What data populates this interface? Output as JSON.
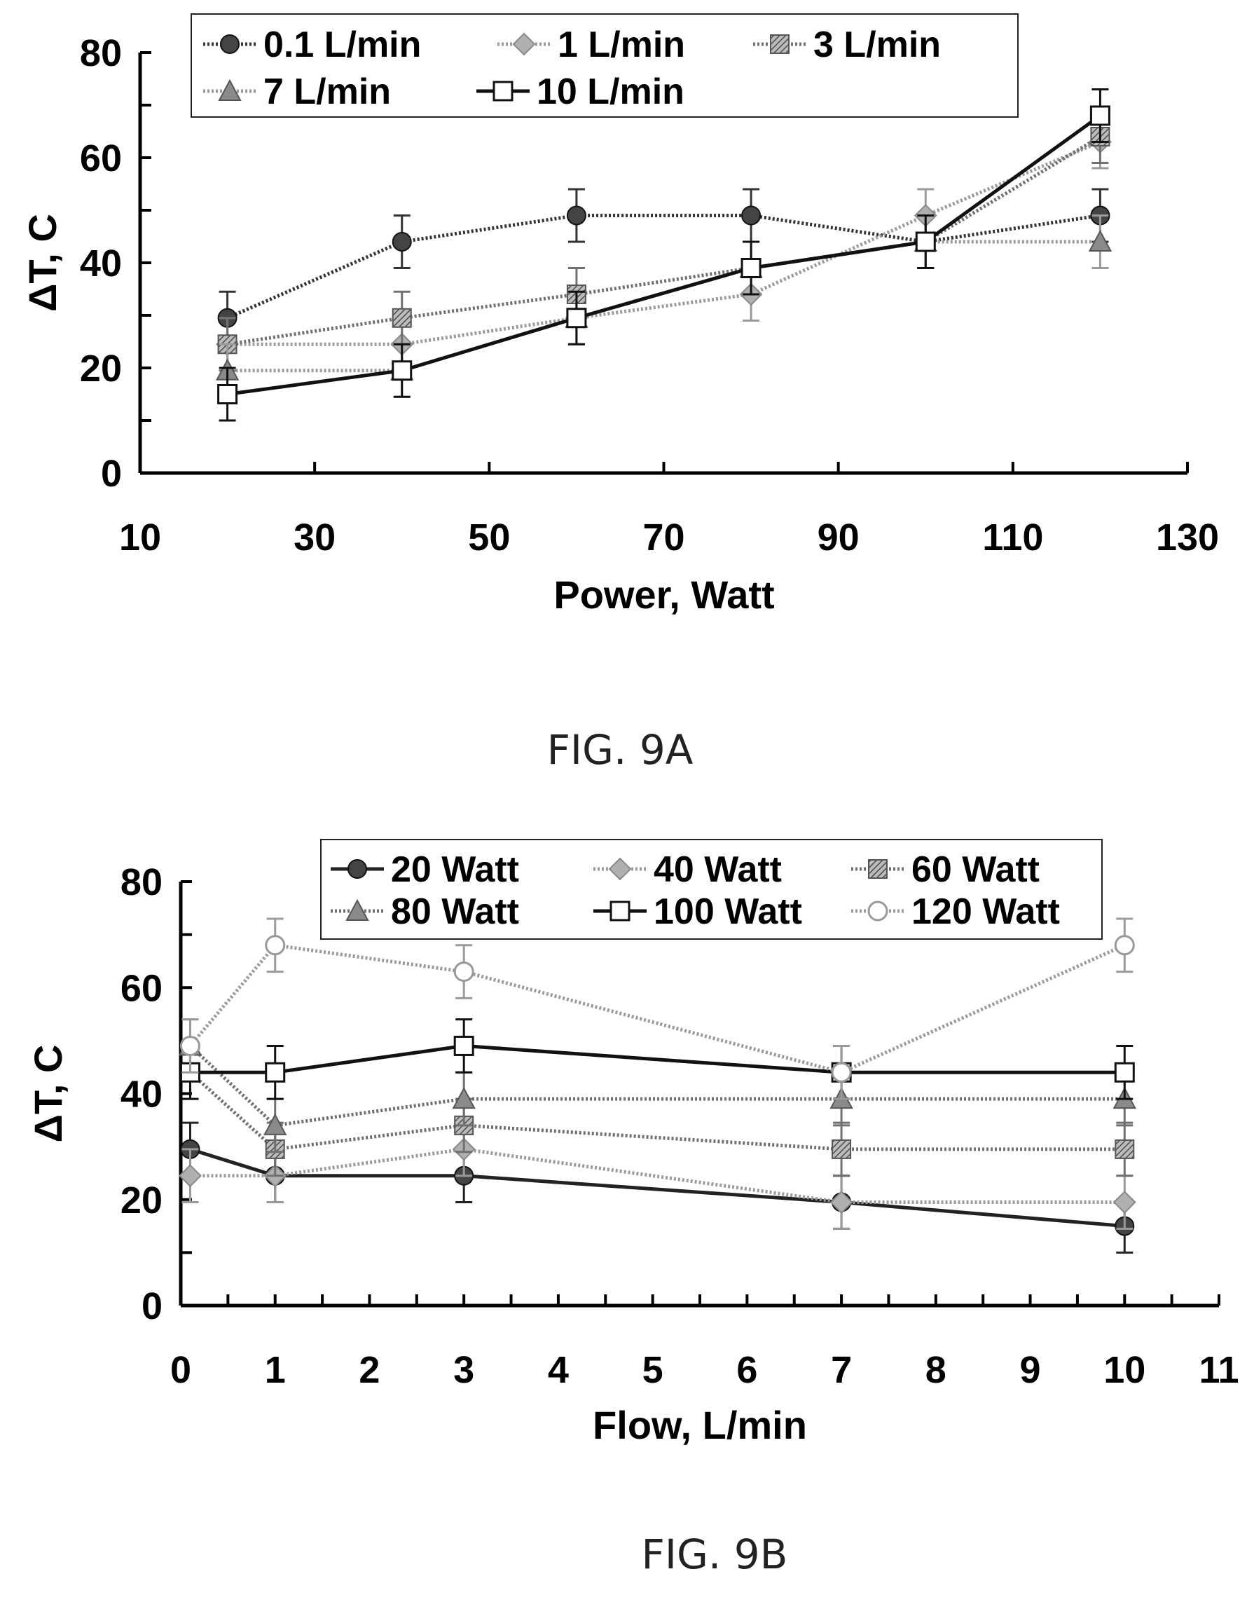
{
  "chart_data": [
    {
      "type": "line",
      "caption": "FIG. 9A",
      "xlabel": "Power, Watt",
      "ylabel": "ΔT, C",
      "xlim": [
        10,
        130
      ],
      "ylim": [
        0,
        80
      ],
      "x_ticks": [
        10,
        30,
        50,
        70,
        90,
        110,
        130
      ],
      "y_ticks": [
        0,
        20,
        40,
        60,
        80
      ],
      "error_bars": true,
      "legend_position": "top",
      "x": [
        20,
        40,
        60,
        80,
        100,
        120
      ],
      "series": [
        {
          "name": "0.1 L/min",
          "marker": "filled-circle",
          "line": "dark-dotted",
          "values": [
            29.5,
            44,
            49,
            49,
            44,
            49
          ],
          "errors": [
            5,
            5,
            5,
            5,
            5,
            5
          ]
        },
        {
          "name": "1 L/min",
          "marker": "diamond",
          "line": "light-dotted",
          "values": [
            24.5,
            24.5,
            29.5,
            34,
            49,
            63
          ],
          "errors": [
            5,
            5,
            5,
            5,
            5,
            5
          ]
        },
        {
          "name": "3 L/min",
          "marker": "hatched-square",
          "line": "medium-dotted",
          "values": [
            24.5,
            29.5,
            34,
            39,
            44,
            64
          ],
          "errors": [
            5,
            5,
            5,
            5,
            5,
            5
          ]
        },
        {
          "name": "7 L/min",
          "marker": "triangle",
          "line": "light-dotted",
          "values": [
            19.5,
            19.5,
            29.5,
            39,
            44,
            44
          ],
          "errors": [
            5,
            5,
            5,
            5,
            5,
            5
          ]
        },
        {
          "name": "10 L/min",
          "marker": "open-square",
          "line": "solid",
          "values": [
            15,
            19.5,
            29.5,
            39,
            44,
            68
          ],
          "errors": [
            5,
            5,
            5,
            5,
            5,
            5
          ]
        }
      ]
    },
    {
      "type": "line",
      "caption": "FIG. 9B",
      "xlabel": "Flow, L/min",
      "ylabel": "ΔT, C",
      "xlim": [
        0,
        11
      ],
      "ylim": [
        0,
        80
      ],
      "x_ticks": [
        0,
        1,
        2,
        3,
        4,
        5,
        6,
        7,
        8,
        9,
        10,
        11
      ],
      "y_ticks": [
        0,
        20,
        40,
        60,
        80
      ],
      "error_bars": true,
      "legend_position": "top",
      "x": [
        0.1,
        1,
        3,
        7,
        10
      ],
      "series": [
        {
          "name": "20 Watt",
          "marker": "filled-circle",
          "line": "dark-solid",
          "values": [
            29.5,
            24.5,
            24.5,
            19.5,
            15
          ],
          "errors": [
            5,
            5,
            5,
            5,
            5
          ]
        },
        {
          "name": "40 Watt",
          "marker": "diamond",
          "line": "light-dotted",
          "values": [
            24.5,
            24.5,
            29.5,
            19.5,
            19.5
          ],
          "errors": [
            5,
            5,
            5,
            5,
            5
          ]
        },
        {
          "name": "60 Watt",
          "marker": "hatched-square",
          "line": "medium-dotted",
          "values": [
            44,
            29.5,
            34,
            29.5,
            29.5
          ],
          "errors": [
            5,
            5,
            5,
            5,
            5
          ]
        },
        {
          "name": "80 Watt",
          "marker": "triangle",
          "line": "medium-dotted",
          "values": [
            49,
            34,
            39,
            39,
            39
          ],
          "errors": [
            5,
            5,
            5,
            5,
            5
          ]
        },
        {
          "name": "100 Watt",
          "marker": "open-square",
          "line": "solid",
          "values": [
            44,
            44,
            49,
            44,
            44
          ],
          "errors": [
            5,
            5,
            5,
            5,
            5
          ]
        },
        {
          "name": "120 Watt",
          "marker": "open-circle",
          "line": "light-dotted",
          "values": [
            49,
            68,
            63,
            44,
            68
          ],
          "errors": [
            5,
            5,
            5,
            5,
            5
          ]
        }
      ]
    }
  ]
}
